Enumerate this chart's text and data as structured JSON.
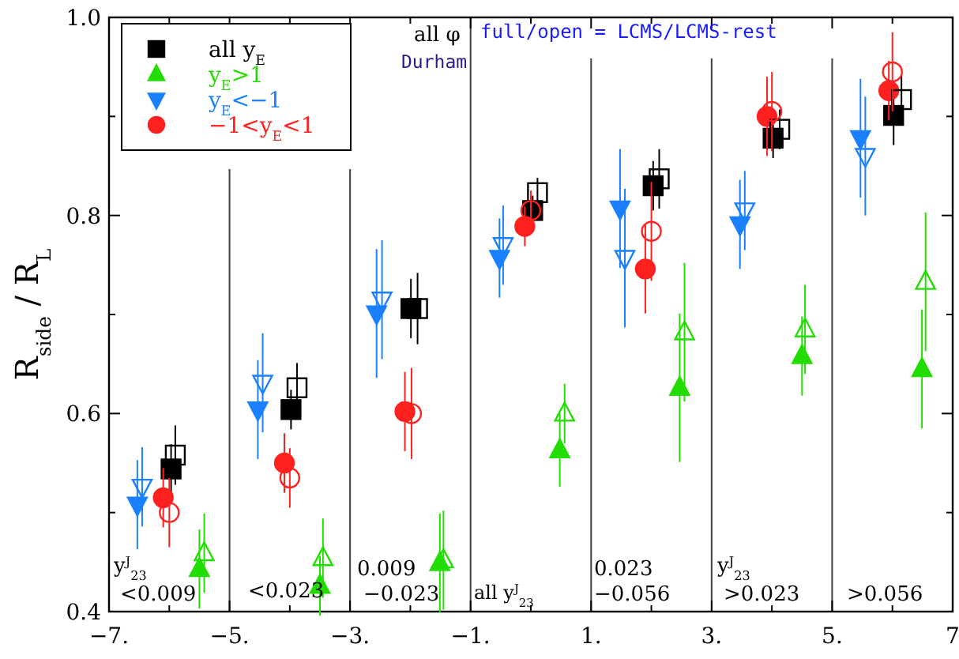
{
  "chart_data": {
    "type": "scatter",
    "ylabel": "R$_{side}$ / R$_{L}$",
    "xlim": [
      -7,
      7
    ],
    "ylim": [
      0.4,
      1.0
    ],
    "xticks": [
      {
        "value": -7,
        "label": "−7."
      },
      {
        "value": -6,
        "label": null
      },
      {
        "value": -5,
        "label": "−5."
      },
      {
        "value": -4,
        "label": null
      },
      {
        "value": -3,
        "label": "−3."
      },
      {
        "value": -2,
        "label": null
      },
      {
        "value": -1,
        "label": "−1."
      },
      {
        "value": 0,
        "label": null
      },
      {
        "value": 1,
        "label": "1."
      },
      {
        "value": 2,
        "label": null
      },
      {
        "value": 3,
        "label": "3."
      },
      {
        "value": 4,
        "label": null
      },
      {
        "value": 5,
        "label": "5."
      },
      {
        "value": 6,
        "label": null
      },
      {
        "value": 7,
        "label": "7"
      }
    ],
    "yticks": [
      0.4,
      {
        "value": 0.5,
        "label": null
      },
      0.6,
      {
        "value": 0.7,
        "label": null
      },
      0.8,
      {
        "value": 0.9,
        "label": null
      },
      {
        "value": 1,
        "label": "1.0"
      }
    ],
    "grid": false,
    "legend": "top left",
    "ref_lines": [
      {
        "axis": "x",
        "value": -5,
        "color": "#404040"
      },
      {
        "axis": "x",
        "value": -3,
        "color": "#404040"
      },
      {
        "axis": "x",
        "value": -1,
        "color": "#404040"
      },
      {
        "axis": "x",
        "value": 1,
        "color": "#404040"
      },
      {
        "axis": "x",
        "value": 3,
        "color": "#404040"
      },
      {
        "axis": "x",
        "value": 5,
        "color": "#404040"
      }
    ],
    "annotations": [
      "all φ",
      "Durham",
      "full/open = LCMS/LCMS-rest",
      "y$^{J}$$_{23}$",
      "<0.009",
      "<0.023",
      "0.009",
      "−0.023",
      "all y$^{J}$$_{23}$",
      "0.023",
      "−0.056",
      "y$^{J}$$_{23}$",
      ">0.023",
      ">0.056"
    ],
    "series": [
      {
        "name": "all y$_{E}$",
        "color": "#000000",
        "marker": "square",
        "x": [
          -5.97,
          -3.98,
          -1.99,
          0.03,
          2.03,
          4.02,
          6.02
        ],
        "values": [
          0.544,
          0.604,
          0.706,
          0.805,
          0.83,
          0.878,
          0.901
        ],
        "errors": [
          0.025,
          0.02,
          0.03,
          0.015,
          0.025,
          0.02,
          0.03
        ]
      },
      {
        "name": "y$_{E}$>1",
        "color": "#22dd00",
        "marker": "triangle",
        "x": [
          -5.5,
          -3.5,
          -1.51,
          0.48,
          2.47,
          4.5,
          6.49
        ],
        "values": [
          0.443,
          0.426,
          0.449,
          0.563,
          0.626,
          0.658,
          0.645
        ],
        "errors": [
          0.04,
          0.03,
          0.05,
          0.037,
          0.075,
          0.04,
          0.06
        ]
      },
      {
        "name": "y$_{E}$<−1",
        "color": "#1a80ff",
        "marker": "triangle-down",
        "x": [
          -6.53,
          -4.53,
          -2.56,
          -0.52,
          1.48,
          3.47,
          5.47
        ],
        "values": [
          0.508,
          0.604,
          0.701,
          0.757,
          0.807,
          0.791,
          0.878
        ],
        "errors": [
          0.045,
          0.05,
          0.065,
          0.04,
          0.06,
          0.045,
          0.06
        ]
      },
      {
        "name": "−1<y$_{E}$<1",
        "color": "#ff2020",
        "marker": "circle",
        "x": [
          -6.1,
          -4.09,
          -2.09,
          -0.1,
          1.9,
          3.92,
          5.94
        ],
        "values": [
          0.515,
          0.55,
          0.602,
          0.789,
          0.746,
          0.9,
          0.926
        ],
        "errors": [
          0.03,
          0.03,
          0.04,
          0.02,
          0.045,
          0.04,
          0.03
        ]
      },
      {
        "color": "#000000",
        "marker": "square-open",
        "x": [
          -5.9,
          -3.88,
          -1.88,
          0.11,
          2.13,
          4.13,
          6.15
        ],
        "values": [
          0.558,
          0.626,
          0.706,
          0.823,
          0.837,
          0.887,
          0.917
        ],
        "errors": [
          0.03,
          0.025,
          0.036,
          0.015,
          0.03,
          0.02,
          0.025
        ]
      },
      {
        "color": "#22dd00",
        "marker": "triangle-open",
        "x": [
          -5.42,
          -3.45,
          -1.45,
          0.56,
          2.55,
          4.55,
          6.55
        ],
        "values": [
          0.459,
          0.454,
          0.452,
          0.6,
          0.682,
          0.685,
          0.733
        ],
        "errors": [
          0.04,
          0.04,
          0.05,
          0.03,
          0.07,
          0.045,
          0.07
        ]
      },
      {
        "color": "#1a80ff",
        "marker": "triangle-down-open",
        "x": [
          -6.45,
          -4.45,
          -2.47,
          -0.46,
          1.56,
          3.55,
          5.55
        ],
        "values": [
          0.526,
          0.631,
          0.715,
          0.77,
          0.757,
          0.805,
          0.86
        ],
        "errors": [
          0.04,
          0.05,
          0.06,
          0.04,
          0.07,
          0.04,
          0.06
        ]
      },
      {
        "color": "#ff2020",
        "marker": "circle-open",
        "x": [
          -6.0,
          -4.0,
          -1.98,
          0.0,
          2.0,
          4.0,
          6.0
        ],
        "values": [
          0.5,
          0.535,
          0.6,
          0.805,
          0.784,
          0.905,
          0.945
        ],
        "errors": [
          0.035,
          0.03,
          0.046,
          0.02,
          0.05,
          0.04,
          0.04
        ]
      }
    ]
  }
}
